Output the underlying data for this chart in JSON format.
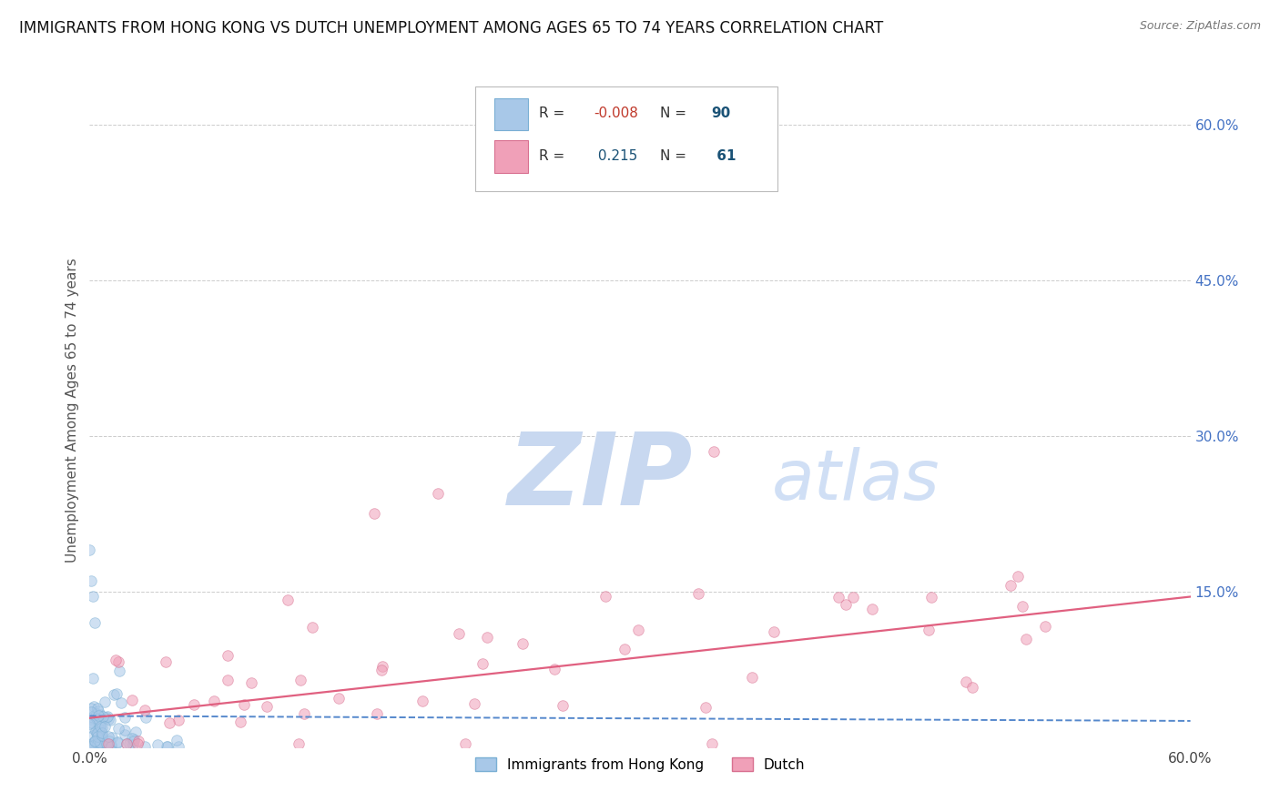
{
  "title": "IMMIGRANTS FROM HONG KONG VS DUTCH UNEMPLOYMENT AMONG AGES 65 TO 74 YEARS CORRELATION CHART",
  "source": "Source: ZipAtlas.com",
  "ylabel": "Unemployment Among Ages 65 to 74 years",
  "xlim": [
    0.0,
    0.6
  ],
  "ylim": [
    0.0,
    0.65
  ],
  "blue_color": "#a8c8e8",
  "blue_edge": "#7aafd4",
  "pink_color": "#f0a0b8",
  "pink_edge": "#d87090",
  "blue_trend_color": "#5588cc",
  "pink_trend_color": "#e06080",
  "watermark_zip_color": "#c8d8f0",
  "watermark_atlas_color": "#d0dff5",
  "background_color": "#ffffff",
  "grid_color": "#cccccc",
  "right_tick_color": "#4472c4",
  "blue_intercept": 0.03,
  "blue_slope": -0.008,
  "pink_intercept": 0.028,
  "pink_slope": 0.195,
  "R_blue": "-0.008",
  "N_blue": "90",
  "R_pink": "0.215",
  "N_pink": "61"
}
